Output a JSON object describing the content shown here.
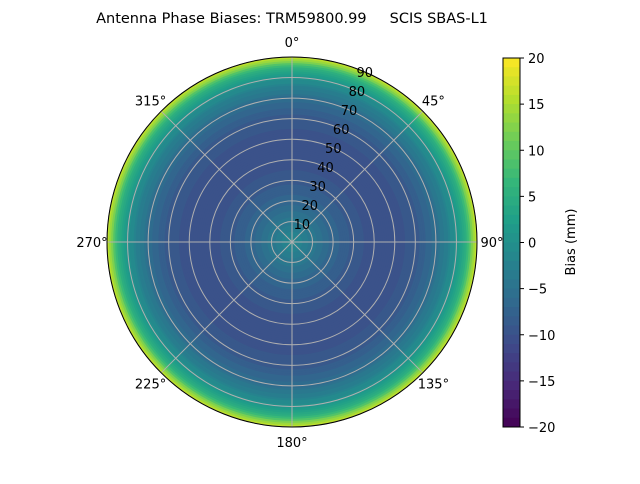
{
  "chart_data": {
    "type": "heatmap",
    "projection": "polar",
    "title": "Antenna Phase Biases: TRM59800.99     SCIS SBAS-L1",
    "angular_ticks": [
      "0°",
      "45°",
      "90°",
      "135°",
      "180°",
      "225°",
      "270°",
      "315°"
    ],
    "radial_ticks": [
      "10",
      "20",
      "30",
      "40",
      "50",
      "60",
      "70",
      "80",
      "90"
    ],
    "radial_range": [
      0,
      90
    ],
    "grid": true,
    "colormap": "viridis",
    "colorbar": {
      "label": "Bias (mm)",
      "range": [
        -20,
        20
      ],
      "ticks": [
        "20",
        "15",
        "10",
        "5",
        "0",
        "−5",
        "−10",
        "−15",
        "−20"
      ]
    },
    "radial_profile": {
      "zenith_angle": [
        0,
        10,
        20,
        30,
        40,
        50,
        60,
        70,
        80,
        85,
        90
      ],
      "bias_mm": [
        -1,
        -4,
        -7,
        -9,
        -10,
        -10,
        -9,
        -6,
        0,
        6,
        17
      ]
    }
  }
}
